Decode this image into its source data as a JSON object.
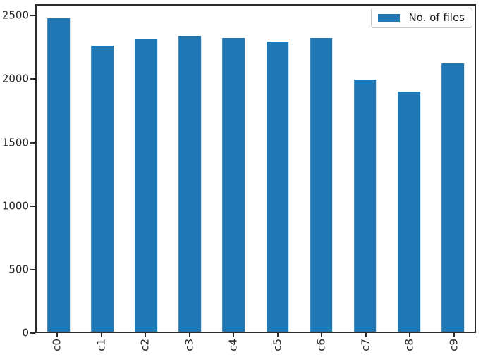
{
  "chart_data": {
    "type": "bar",
    "title": "",
    "xlabel": "",
    "ylabel": "",
    "categories": [
      "c0",
      "c1",
      "c2",
      "c3",
      "c4",
      "c5",
      "c6",
      "c7",
      "c8",
      "c9"
    ],
    "series": [
      {
        "name": "No. of files",
        "values": [
          2490,
          2270,
          2320,
          2350,
          2330,
          2305,
          2330,
          2000,
          1910,
          2130
        ]
      }
    ],
    "yticks": [
      0,
      500,
      1000,
      1500,
      2000,
      2500
    ],
    "ylim": [
      0,
      2590
    ],
    "grid": false,
    "legend_position": "upper right",
    "x_tick_label_rotation": 90
  },
  "colors": {
    "bar": "#1f77b4",
    "spine": "#2b2b2b",
    "tick_label": "#262626",
    "legend_border": "#c9c9c9",
    "background": "#ffffff"
  }
}
